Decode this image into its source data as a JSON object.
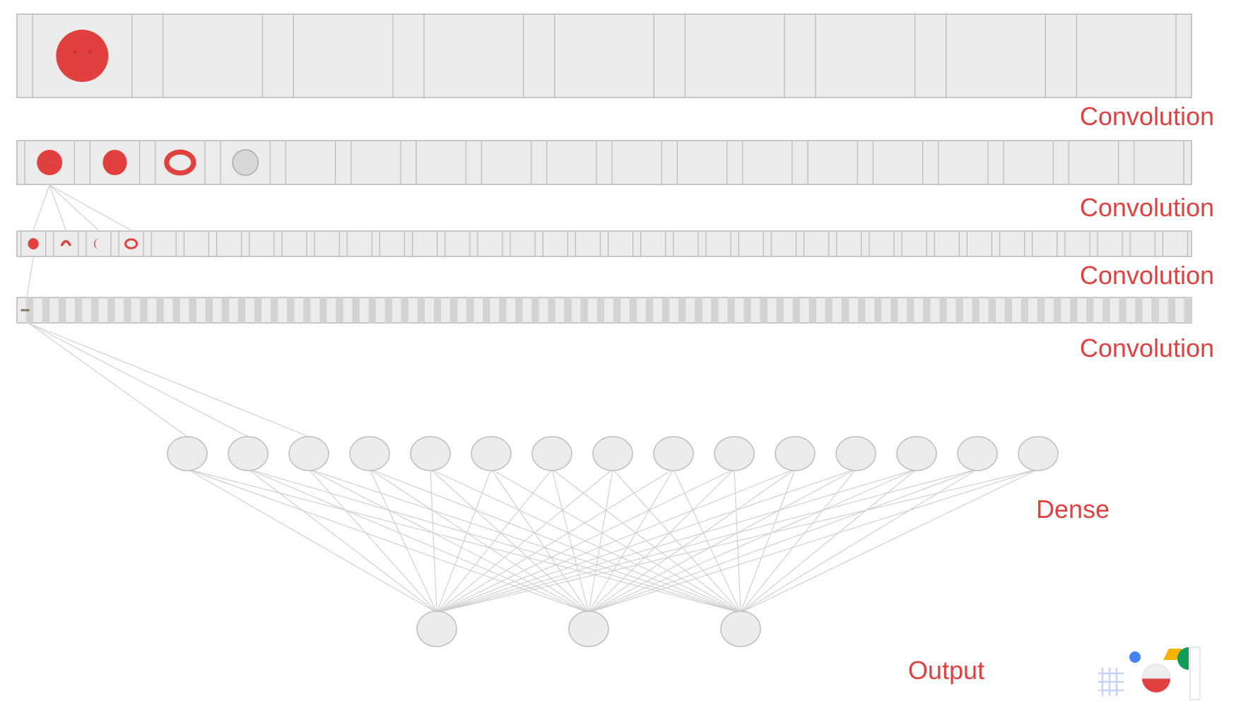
{
  "layers": [
    {
      "type": "convolution",
      "label": "Convolution",
      "cells": 9
    },
    {
      "type": "convolution",
      "label": "Convolution",
      "cells": 18
    },
    {
      "type": "convolution",
      "label": "Convolution",
      "cells": 36
    },
    {
      "type": "convolution",
      "label": "Convolution",
      "cells": 72
    },
    {
      "type": "dense",
      "label": "Dense",
      "nodes": 15
    },
    {
      "type": "output",
      "label": "Output",
      "nodes": 3
    }
  ],
  "features": {
    "layer1": [
      "face"
    ],
    "layer2": [
      "face",
      "dot",
      "ring",
      "blank"
    ],
    "layer3": [
      "dot",
      "arc",
      "crescent",
      "ring"
    ],
    "layer4": [
      "dash"
    ]
  },
  "colors": {
    "accent": "#e0413f",
    "cell_fill": "#ececec",
    "cell_stroke": "#b8b8b8",
    "node_fill": "#ececec",
    "node_stroke": "#bdbdbd",
    "edge": "#d0d0d0"
  },
  "logo": {
    "icons": [
      "hash-icon",
      "blue-dot-icon",
      "red-bowl-icon",
      "yellow-shape-icon",
      "green-half-circle-icon"
    ]
  }
}
